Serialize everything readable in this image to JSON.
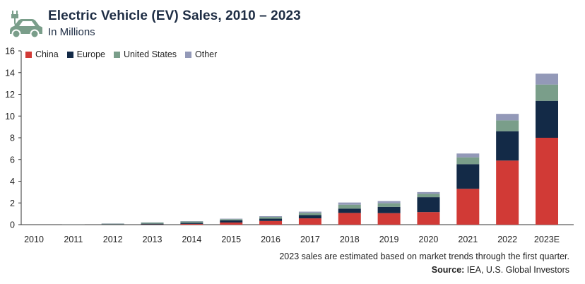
{
  "header": {
    "title": "Electric Vehicle (EV) Sales, 2010 – 2023",
    "subtitle": "In Millions",
    "logo_icon": "electric-car-charging-icon"
  },
  "footnote": "2023 sales are estimated based on market trends through the first quarter.",
  "source": {
    "label": "Source:",
    "text": "IEA, U.S. Global Investors"
  },
  "colors": {
    "China": "#d13a36",
    "Europe": "#132a47",
    "United States": "#7a9e8a",
    "Other": "#9399b8",
    "axis": "#333333",
    "title": "#1e2d44"
  },
  "chart_data": {
    "type": "bar",
    "stacked": true,
    "title": "Electric Vehicle (EV) Sales, 2010 – 2023",
    "subtitle": "In Millions",
    "xlabel": "",
    "ylabel": "",
    "ylim": [
      0,
      16
    ],
    "yticks": [
      0,
      2,
      4,
      6,
      8,
      10,
      12,
      14,
      16
    ],
    "grid": false,
    "legend_position": "top-left",
    "categories": [
      "2010",
      "2011",
      "2012",
      "2013",
      "2014",
      "2015",
      "2016",
      "2017",
      "2018",
      "2019",
      "2020",
      "2021",
      "2022",
      "2023E"
    ],
    "series": [
      {
        "name": "China",
        "values": [
          0.0,
          0.005,
          0.01,
          0.02,
          0.07,
          0.2,
          0.34,
          0.58,
          1.08,
          1.06,
          1.16,
          3.3,
          5.9,
          8.0
        ]
      },
      {
        "name": "Europe",
        "values": [
          0.0,
          0.01,
          0.03,
          0.07,
          0.1,
          0.19,
          0.21,
          0.3,
          0.4,
          0.58,
          1.37,
          2.27,
          2.7,
          3.4
        ]
      },
      {
        "name": "United States",
        "values": [
          0.0,
          0.01,
          0.05,
          0.1,
          0.12,
          0.11,
          0.16,
          0.2,
          0.36,
          0.33,
          0.3,
          0.63,
          1.0,
          1.5
        ]
      },
      {
        "name": "Other",
        "values": [
          0.0,
          0.0,
          0.02,
          0.02,
          0.03,
          0.05,
          0.07,
          0.12,
          0.2,
          0.2,
          0.17,
          0.35,
          0.6,
          1.0
        ]
      }
    ]
  }
}
